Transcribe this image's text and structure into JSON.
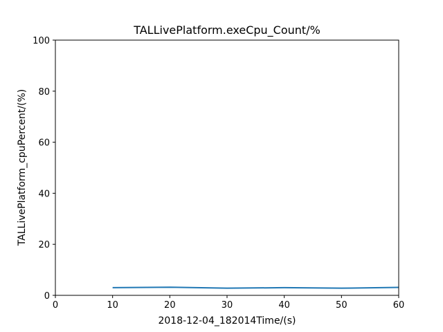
{
  "chart_data": {
    "type": "line",
    "title": "TALLivePlatform.exeCpu_Count/%",
    "xlabel": "2018-12-04_182014Time/(s)",
    "ylabel": "TALLivePlatform_cpuPercent/(%)",
    "xlim": [
      0,
      60
    ],
    "ylim": [
      0,
      100
    ],
    "xticks": [
      0,
      10,
      20,
      30,
      40,
      50,
      60
    ],
    "yticks": [
      0,
      20,
      40,
      60,
      80,
      100
    ],
    "grid": false,
    "series": [
      {
        "x": [
          10,
          20,
          30,
          40,
          50,
          60
        ],
        "y": [
          3.0,
          3.2,
          2.8,
          3.0,
          2.8,
          3.1
        ],
        "color": "#1f77b4"
      }
    ]
  }
}
